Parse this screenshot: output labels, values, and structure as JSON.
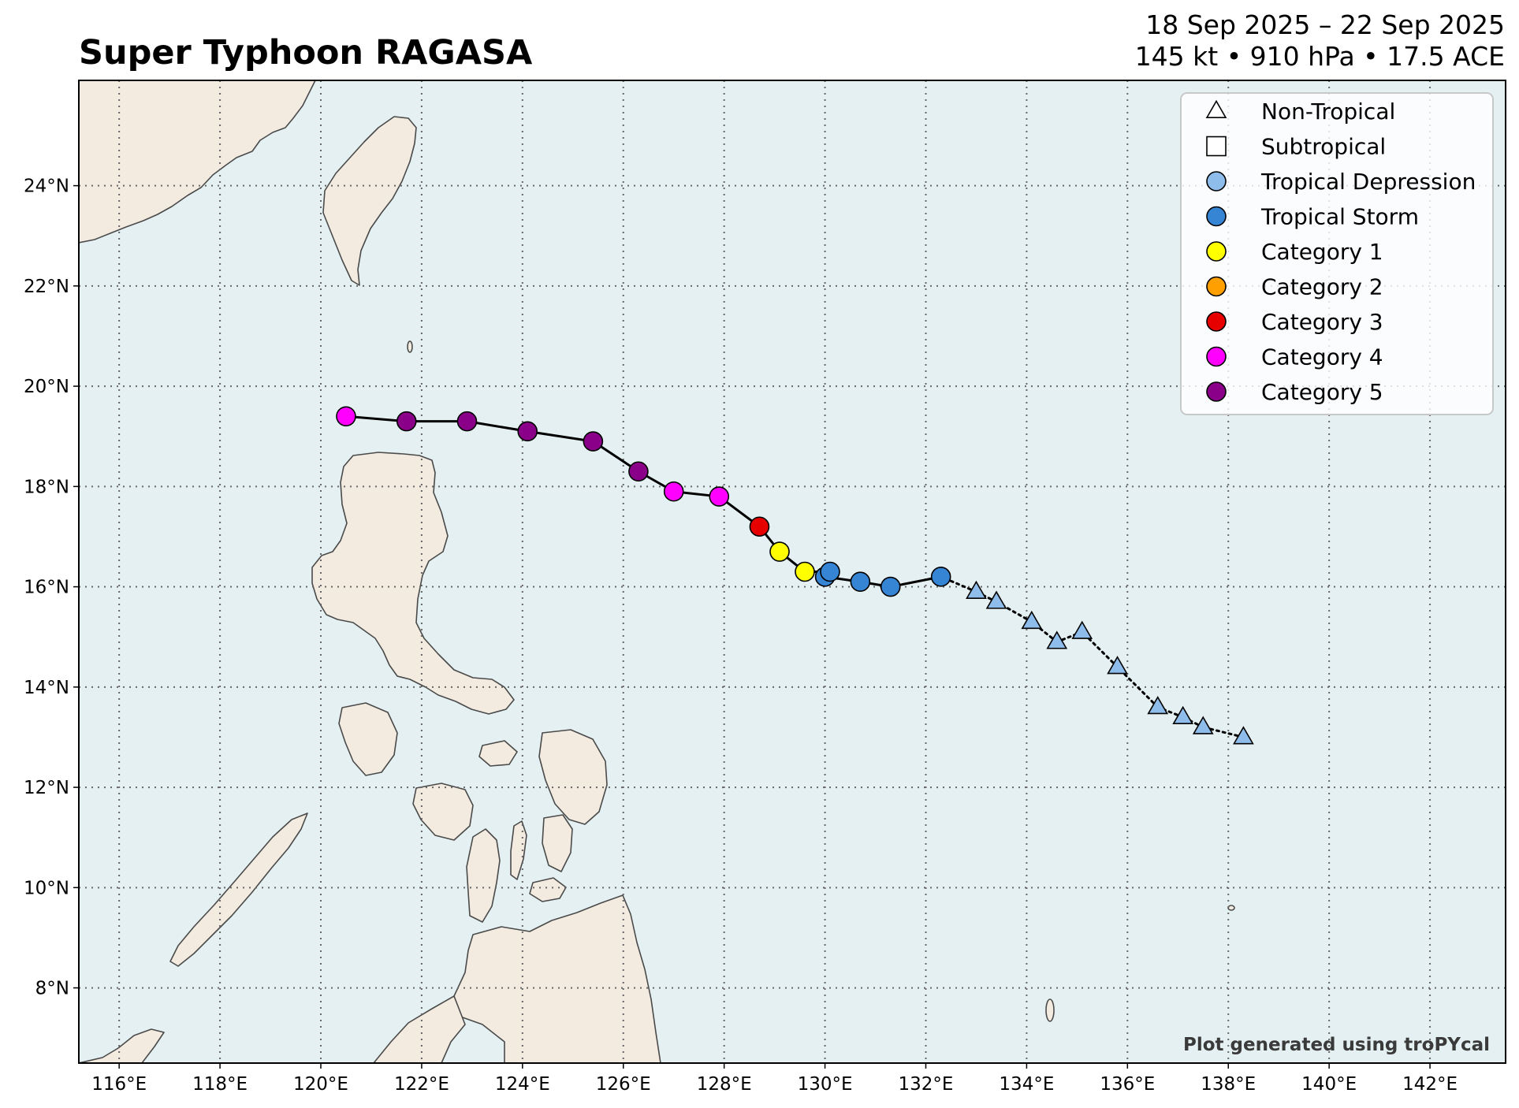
{
  "title": "Super Typhoon RAGASA",
  "subtitle_line1": "18 Sep 2025 – 22 Sep 2025",
  "subtitle_line2": "145 kt • 910 hPa • 17.5 ACE",
  "credit": "Plot generated using troPYcal",
  "colors": {
    "ocean": "#e4f0f2",
    "land": "#f3ebe0",
    "coast": "#4a4a4a",
    "grid": "#666666",
    "track_line": "#000000"
  },
  "legend": [
    {
      "label": "Non-Tropical",
      "symbol": "triangle",
      "color": "#ffffff"
    },
    {
      "label": "Subtropical",
      "symbol": "square",
      "color": "#ffffff"
    },
    {
      "label": "Tropical Depression",
      "symbol": "circle",
      "color": "#8fbdeb"
    },
    {
      "label": "Tropical Storm",
      "symbol": "circle",
      "color": "#3684d4"
    },
    {
      "label": "Category 1",
      "symbol": "circle",
      "color": "#ffff00"
    },
    {
      "label": "Category 2",
      "symbol": "circle",
      "color": "#ffa000"
    },
    {
      "label": "Category 3",
      "symbol": "circle",
      "color": "#e60000"
    },
    {
      "label": "Category 4",
      "symbol": "circle",
      "color": "#ff00ff"
    },
    {
      "label": "Category 5",
      "symbol": "circle",
      "color": "#8a0088"
    }
  ],
  "chart_data": {
    "type": "scatter",
    "map_extent": {
      "lon": [
        115.2,
        143.5
      ],
      "lat": [
        6.5,
        26.1
      ]
    },
    "x_ticks": [
      "116°E",
      "118°E",
      "120°E",
      "122°E",
      "124°E",
      "126°E",
      "128°E",
      "130°E",
      "132°E",
      "134°E",
      "136°E",
      "138°E",
      "140°E",
      "142°E"
    ],
    "x_tick_values": [
      116,
      118,
      120,
      122,
      124,
      126,
      128,
      130,
      132,
      134,
      136,
      138,
      140,
      142
    ],
    "y_ticks": [
      "8°N",
      "10°N",
      "12°N",
      "14°N",
      "16°N",
      "18°N",
      "20°N",
      "22°N",
      "24°N"
    ],
    "y_tick_values": [
      8,
      10,
      12,
      14,
      16,
      18,
      20,
      22,
      24
    ],
    "grid": true,
    "legend_position": "top-right",
    "track": [
      {
        "lon": 138.3,
        "lat": 13.0,
        "class": "Tropical Depression",
        "symbol": "triangle"
      },
      {
        "lon": 137.5,
        "lat": 13.2,
        "class": "Tropical Depression",
        "symbol": "triangle"
      },
      {
        "lon": 137.1,
        "lat": 13.4,
        "class": "Tropical Depression",
        "symbol": "triangle"
      },
      {
        "lon": 136.6,
        "lat": 13.6,
        "class": "Tropical Depression",
        "symbol": "triangle"
      },
      {
        "lon": 135.8,
        "lat": 14.4,
        "class": "Tropical Depression",
        "symbol": "triangle"
      },
      {
        "lon": 135.1,
        "lat": 15.1,
        "class": "Tropical Depression",
        "symbol": "triangle"
      },
      {
        "lon": 134.6,
        "lat": 14.9,
        "class": "Tropical Depression",
        "symbol": "triangle"
      },
      {
        "lon": 134.1,
        "lat": 15.3,
        "class": "Tropical Depression",
        "symbol": "triangle"
      },
      {
        "lon": 133.4,
        "lat": 15.7,
        "class": "Tropical Depression",
        "symbol": "triangle"
      },
      {
        "lon": 133.0,
        "lat": 15.9,
        "class": "Tropical Depression",
        "symbol": "triangle"
      },
      {
        "lon": 132.3,
        "lat": 16.2,
        "class": "Tropical Storm",
        "symbol": "circle"
      },
      {
        "lon": 131.3,
        "lat": 16.0,
        "class": "Tropical Storm",
        "symbol": "circle"
      },
      {
        "lon": 130.7,
        "lat": 16.1,
        "class": "Tropical Storm",
        "symbol": "circle"
      },
      {
        "lon": 130.0,
        "lat": 16.2,
        "class": "Tropical Storm",
        "symbol": "circle"
      },
      {
        "lon": 130.1,
        "lat": 16.3,
        "class": "Tropical Storm",
        "symbol": "circle"
      },
      {
        "lon": 129.6,
        "lat": 16.3,
        "class": "Category 1",
        "symbol": "circle"
      },
      {
        "lon": 129.1,
        "lat": 16.7,
        "class": "Category 1",
        "symbol": "circle"
      },
      {
        "lon": 128.7,
        "lat": 17.2,
        "class": "Category 3",
        "symbol": "circle"
      },
      {
        "lon": 127.9,
        "lat": 17.8,
        "class": "Category 4",
        "symbol": "circle"
      },
      {
        "lon": 127.0,
        "lat": 17.9,
        "class": "Category 4",
        "symbol": "circle"
      },
      {
        "lon": 126.3,
        "lat": 18.3,
        "class": "Category 5",
        "symbol": "circle"
      },
      {
        "lon": 125.4,
        "lat": 18.9,
        "class": "Category 5",
        "symbol": "circle"
      },
      {
        "lon": 124.1,
        "lat": 19.1,
        "class": "Category 5",
        "symbol": "circle"
      },
      {
        "lon": 122.9,
        "lat": 19.3,
        "class": "Category 5",
        "symbol": "circle"
      },
      {
        "lon": 121.7,
        "lat": 19.3,
        "class": "Category 5",
        "symbol": "circle"
      },
      {
        "lon": 120.5,
        "lat": 19.4,
        "class": "Category 4",
        "symbol": "circle"
      }
    ]
  }
}
